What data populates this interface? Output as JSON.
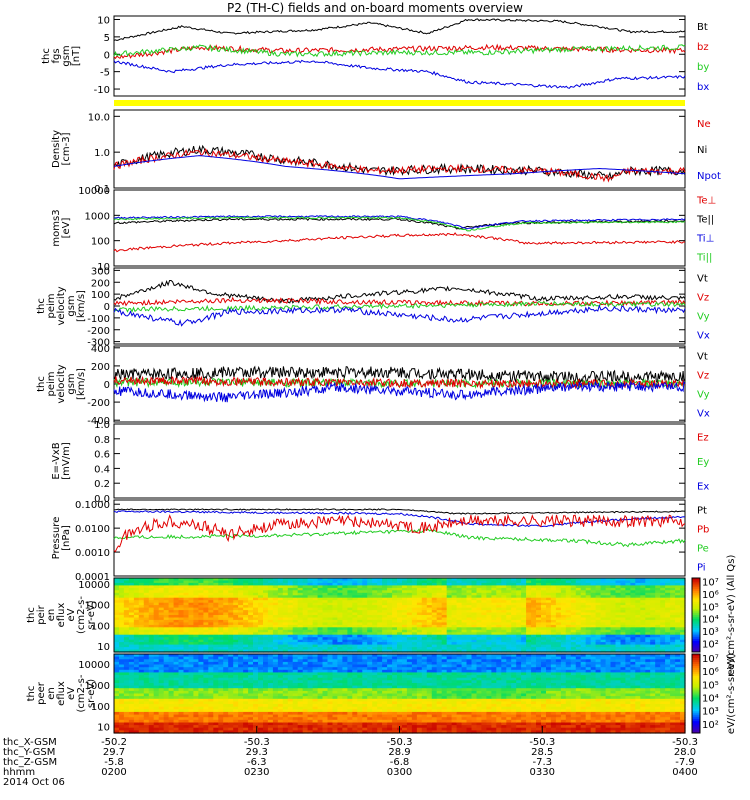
{
  "title": "P2 (TH-C) fields and on-board moments overview",
  "date": "2014 Oct 06",
  "colors": {
    "black": "#000000",
    "red": "#e00000",
    "green": "#22cc22",
    "blue": "#0000e0",
    "yellow": "#ffff00"
  },
  "panels": [
    {
      "id": "fgs",
      "ylabel": [
        "thc",
        "fgs",
        "gsm",
        "[nT]"
      ],
      "scale": "linear",
      "ylim": [
        -12,
        11
      ],
      "ticks": [
        "10",
        "5",
        "0",
        "-5",
        "-10"
      ],
      "tickvals": [
        10,
        5,
        0,
        -5,
        -10
      ],
      "legend": [
        {
          "label": "Bt",
          "color": "black"
        },
        {
          "label": "bz",
          "color": "red"
        },
        {
          "label": "by",
          "color": "green"
        },
        {
          "label": "bx",
          "color": "blue"
        }
      ]
    },
    {
      "id": "density",
      "ylabel": [
        "Density",
        "[cm-3]"
      ],
      "scale": "log",
      "ylim": [
        0.1,
        15
      ],
      "ticks": [
        "10.0",
        "1.0",
        "0.1"
      ],
      "tickvals": [
        10,
        1,
        0.1
      ],
      "legend": [
        {
          "label": "Ne",
          "color": "red"
        },
        {
          "label": "Ni",
          "color": "black"
        },
        {
          "label": "Npot",
          "color": "blue"
        }
      ]
    },
    {
      "id": "temp",
      "ylabel": [
        "moms3",
        "[eV]"
      ],
      "scale": "log",
      "ylim": [
        10,
        10000
      ],
      "ticks": [
        "10000",
        "1000",
        "100",
        "10"
      ],
      "tickvals": [
        10000,
        1000,
        100,
        10
      ],
      "legend": [
        {
          "label": "Te⊥",
          "color": "red"
        },
        {
          "label": "Te||",
          "color": "black"
        },
        {
          "label": "Ti⊥",
          "color": "blue"
        },
        {
          "label": "Ti||",
          "color": "green"
        }
      ]
    },
    {
      "id": "vel1",
      "ylabel": [
        "thc",
        "peim",
        "velocity",
        "gsm",
        "[km/s]"
      ],
      "scale": "linear",
      "ylim": [
        -320,
        320
      ],
      "ticks": [
        "300",
        "200",
        "100",
        "0",
        "-100",
        "-200",
        "-300"
      ],
      "tickvals": [
        300,
        200,
        100,
        0,
        -100,
        -200,
        -300
      ],
      "legend": [
        {
          "label": "Vt",
          "color": "black"
        },
        {
          "label": "Vz",
          "color": "red"
        },
        {
          "label": "Vy",
          "color": "green"
        },
        {
          "label": "Vx",
          "color": "blue"
        }
      ]
    },
    {
      "id": "vel2",
      "ylabel": [
        "thc",
        "peim",
        "velocity",
        "gsm",
        "[km/s]"
      ],
      "scale": "linear",
      "ylim": [
        -420,
        420
      ],
      "ticks": [
        "400",
        "200",
        "0",
        "-200",
        "-400"
      ],
      "tickvals": [
        400,
        200,
        0,
        -200,
        -400
      ],
      "legend": [
        {
          "label": "Vt",
          "color": "black"
        },
        {
          "label": "Vz",
          "color": "red"
        },
        {
          "label": "Vy",
          "color": "green"
        },
        {
          "label": "Vx",
          "color": "blue"
        }
      ]
    },
    {
      "id": "efield",
      "ylabel": [
        "E=-VxB",
        "[mV/m]"
      ],
      "scale": "linear",
      "ylim": [
        0,
        1
      ],
      "ticks": [
        "1.0",
        "0.8",
        "0.6",
        "0.4",
        "0.2",
        "0.0"
      ],
      "tickvals": [
        1,
        0.8,
        0.6,
        0.4,
        0.2,
        0
      ],
      "legend": [
        {
          "label": "Ez",
          "color": "red"
        },
        {
          "label": "Ey",
          "color": "green"
        },
        {
          "label": "Ex",
          "color": "blue"
        }
      ]
    },
    {
      "id": "pressure",
      "ylabel": [
        "Pressure",
        "[nPa]"
      ],
      "scale": "log",
      "ylim": [
        0.0001,
        0.15
      ],
      "ticks": [
        "0.1000",
        "0.0100",
        "0.0010",
        "0.0001"
      ],
      "tickvals": [
        0.1,
        0.01,
        0.001,
        0.0001
      ],
      "legend": [
        {
          "label": "Pt",
          "color": "black"
        },
        {
          "label": "Pb",
          "color": "red"
        },
        {
          "label": "Pe",
          "color": "green"
        },
        {
          "label": "Pi",
          "color": "blue"
        }
      ]
    },
    {
      "id": "peir",
      "ylabel": [
        "thc",
        "peir",
        "en",
        "eflux",
        "eV",
        "(cm2-s-",
        "sr-eV)"
      ],
      "scale": "log",
      "ylim": [
        5,
        20000
      ],
      "ticks": [
        "10000",
        "1000",
        "100",
        "10"
      ],
      "tickvals": [
        10000,
        1000,
        100,
        10
      ]
    },
    {
      "id": "peer",
      "ylabel": [
        "thc",
        "peer",
        "en",
        "eflux",
        "eV",
        "(cm2-s-",
        "sr-eV)"
      ],
      "scale": "log",
      "ylim": [
        5,
        30000
      ],
      "ticks": [
        "10000",
        "1000",
        "100",
        "10"
      ],
      "tickvals": [
        10000,
        1000,
        100,
        10
      ]
    }
  ],
  "colorbar": {
    "ticks": [
      "10⁷",
      "10⁶",
      "10⁵",
      "10⁴",
      "10³",
      "10²"
    ],
    "ticks2": [
      "10⁷",
      "10⁶",
      "10⁵",
      "10⁴",
      "10³",
      "10²"
    ],
    "label": "eV/(cm²-s-sr-eV) (All Qs)",
    "label2": "eV/(cm²-s-sr-eV)"
  },
  "xaxis": {
    "rows": [
      {
        "label": "thc_X-GSM",
        "values": [
          "-50.2",
          "-50.3",
          "-50.3",
          "-50.3",
          "-50.3"
        ]
      },
      {
        "label": "thc_Y-GSM",
        "values": [
          "29.7",
          "29.3",
          "28.9",
          "28.5",
          "28.0"
        ]
      },
      {
        "label": "thc_Z-GSM",
        "values": [
          "-5.8",
          "-6.3",
          "-6.8",
          "-7.3",
          "-7.9"
        ]
      },
      {
        "label": "hhmm",
        "values": [
          "0200",
          "0230",
          "0300",
          "0330",
          "0400"
        ]
      }
    ]
  },
  "chart_data": {
    "type": "line",
    "title": "P2 (TH-C) fields and on-board moments overview",
    "x": [
      "0200",
      "0230",
      "0300",
      "0330",
      "0400"
    ],
    "series": [
      {
        "name": "Bt",
        "values": [
          6,
          8,
          9,
          10,
          6.5
        ]
      },
      {
        "name": "bz",
        "values": [
          1,
          2,
          2,
          1.5,
          1
        ]
      },
      {
        "name": "by",
        "values": [
          0,
          1,
          0.5,
          1.2,
          2
        ]
      },
      {
        "name": "bx",
        "values": [
          -5,
          -4,
          -7,
          -9,
          -6.5
        ]
      },
      {
        "name": "Ni",
        "values": [
          0.5,
          0.8,
          0.3,
          0.4,
          0.3
        ]
      },
      {
        "name": "Npot",
        "values": [
          0.5,
          0.5,
          0.25,
          0.25,
          0.2
        ]
      }
    ]
  }
}
